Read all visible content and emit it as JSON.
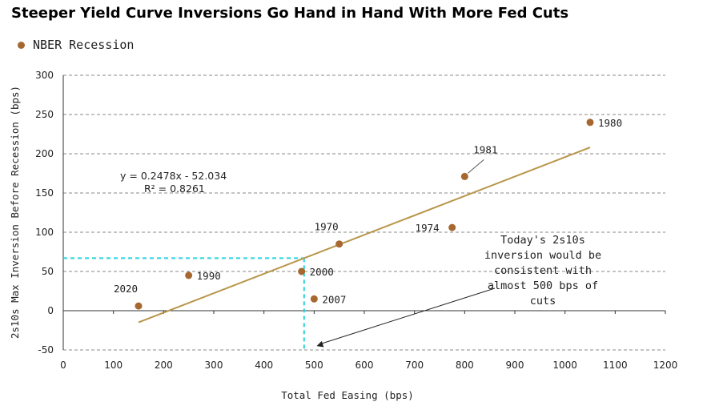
{
  "chart_data": {
    "type": "scatter",
    "title": "Steeper Yield Curve Inversions Go Hand in Hand With More Fed Cuts",
    "xlabel": "Total Fed Easing (bps)",
    "ylabel": "2s10s Max Inversion Before Recession (bps)",
    "xlim": [
      0,
      1200
    ],
    "ylim": [
      -50,
      300
    ],
    "xticks": [
      0,
      100,
      200,
      300,
      400,
      500,
      600,
      700,
      800,
      900,
      1000,
      1100,
      1200
    ],
    "yticks": [
      -50,
      0,
      50,
      100,
      150,
      200,
      250,
      300
    ],
    "grid": "horizontal dashed",
    "legend": "top-left",
    "legend_label": "NBER Recession",
    "colors": {
      "points": "#a6682f",
      "trendline": "#b8964a",
      "highlight": "#27d4e0"
    },
    "series": [
      {
        "name": "NBER Recession",
        "points": [
          {
            "label": "1980",
            "x": 1050,
            "y": 240
          },
          {
            "label": "1981",
            "x": 800,
            "y": 171
          },
          {
            "label": "1974",
            "x": 775,
            "y": 106
          },
          {
            "label": "1970",
            "x": 550,
            "y": 85
          },
          {
            "label": "2000",
            "x": 475,
            "y": 50
          },
          {
            "label": "2007",
            "x": 500,
            "y": 15
          },
          {
            "label": "1990",
            "x": 250,
            "y": 45
          },
          {
            "label": "2020",
            "x": 150,
            "y": 6
          }
        ]
      }
    ],
    "trendline": {
      "equation": "y = 0.2478x - 52.034",
      "r2": "R² = 0.8261",
      "slope": 0.2478,
      "intercept": -52.034,
      "x_range": [
        150,
        1050
      ]
    },
    "highlight": {
      "x": 480,
      "y": 67
    },
    "annotation": [
      "Today's 2s10s",
      "inversion would be",
      "consistent with",
      "almost 500 bps of",
      "cuts"
    ],
    "annotation_arrow_target": {
      "x": 505,
      "y": -45
    }
  }
}
